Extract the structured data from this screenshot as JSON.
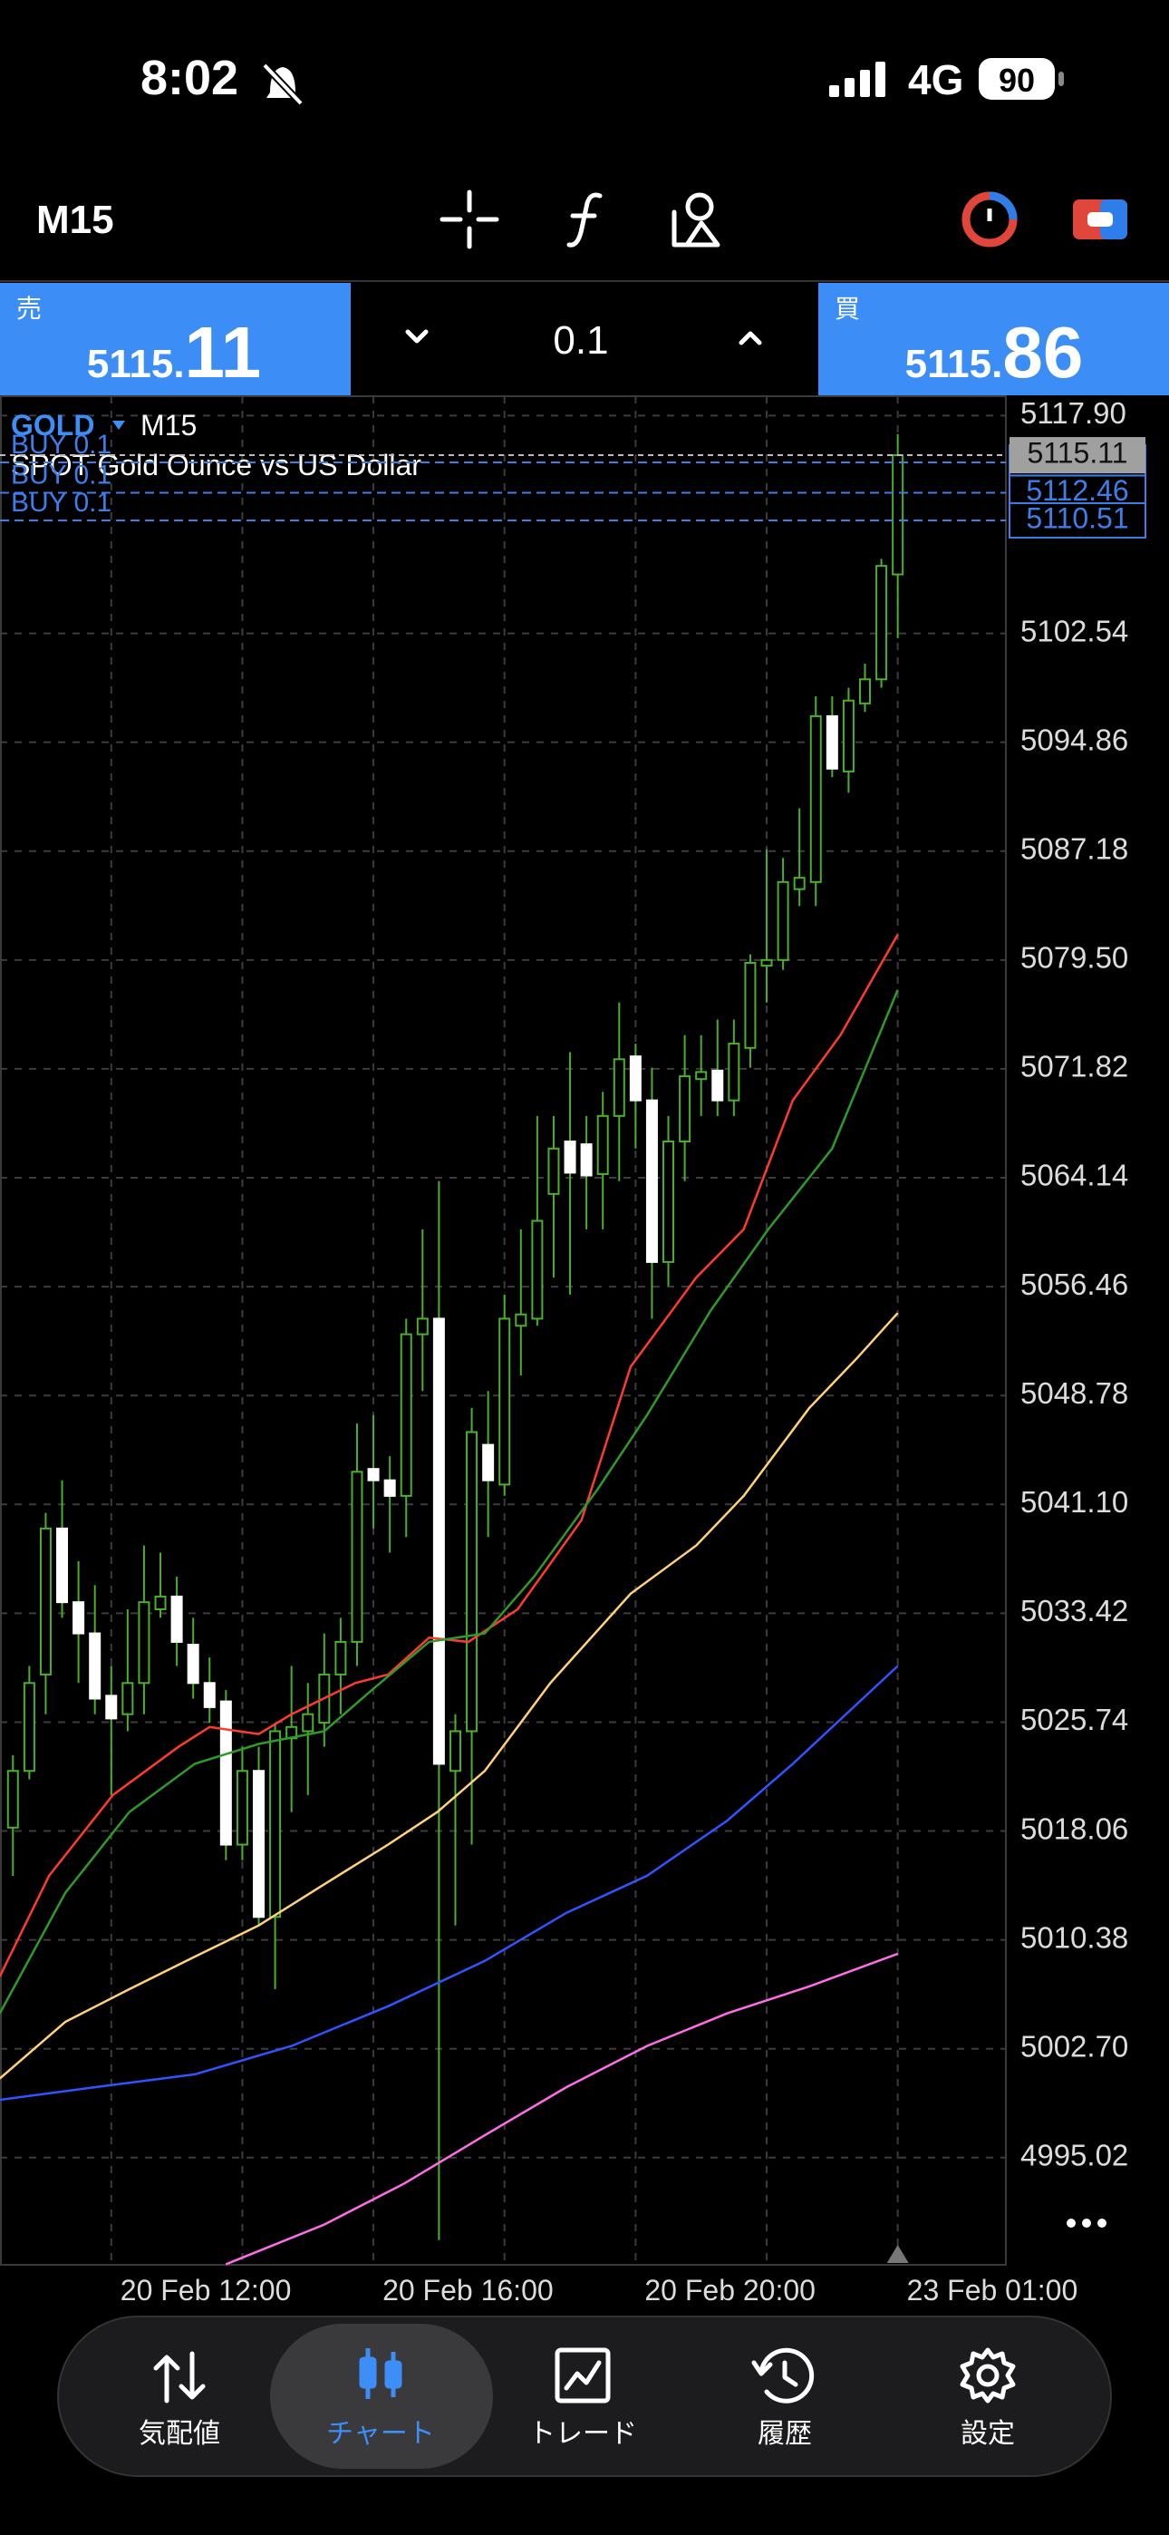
{
  "status_bar": {
    "time": "8:02",
    "network": "4G",
    "battery": "90"
  },
  "toolbar": {
    "timeframe": "M15"
  },
  "trade_panel": {
    "sell": {
      "label": "売",
      "main": "5115.",
      "big": "11"
    },
    "lot": "0.1",
    "buy": {
      "label": "買",
      "main": "5115.",
      "big": "86"
    }
  },
  "chart_data": {
    "type": "candlestick",
    "symbol": "GOLD",
    "timeframe": "M15",
    "description": "SPOT Gold Ounce vs US Dollar",
    "ylim": [
      4987.46,
      5119.27
    ],
    "yticks": [
      {
        "value": 5117.9,
        "label": "5117.90"
      },
      5102.54,
      5094.86,
      5087.18,
      {
        "value": 5079.5,
        "label": "5079.50"
      },
      5071.82,
      5064.14,
      5056.46,
      5048.78,
      {
        "value": 5041.1,
        "label": "5041.10"
      },
      5033.42,
      5025.74,
      5018.06,
      5010.38,
      {
        "value": 5002.7,
        "label": "5002.70"
      },
      4995.02
    ],
    "xlim": [
      -0.79,
      60.6
    ],
    "xticks": [
      {
        "value": 6,
        "label": "20 Feb 12:00"
      },
      {
        "value": 14,
        "label": null
      },
      {
        "value": 22,
        "label": "20 Feb 16:00"
      },
      {
        "value": 30,
        "label": null
      },
      {
        "value": 38,
        "label": "20 Feb 20:00"
      },
      {
        "value": 46,
        "label": null
      },
      {
        "value": 54,
        "label": "23 Feb 01:00"
      }
    ],
    "grid": true,
    "colors": {
      "up": "#4caf2b",
      "down": "#ffffff"
    },
    "candles": {
      "open": [
        5018.3,
        5022.3,
        5029.1,
        5039.4,
        5034.2,
        5032.0,
        5027.6,
        5026.3,
        5028.5,
        5033.7,
        5034.6,
        5031.2,
        5028.5,
        5027.2,
        5017.1,
        5022.3,
        5012.0,
        5024.6,
        5025.1,
        5025.7,
        5029.1,
        5031.4,
        5043.6,
        5042.8,
        5041.7,
        5053.1,
        5054.2,
        5022.3,
        5025.1,
        5045.3,
        5042.5,
        5053.7,
        5054.2,
        5063.0,
        5066.7,
        5066.5,
        5064.4,
        5068.5,
        5072.7,
        5069.6,
        5058.2,
        5066.7,
        5071.1,
        5071.7,
        5069.6,
        5073.3,
        5079.1,
        5079.5,
        5084.5,
        5085.0,
        5096.7,
        5092.8,
        5097.6,
        5099.3,
        5106.7
      ],
      "high": [
        5023.4,
        5029.7,
        5040.5,
        5042.8,
        5037.1,
        5035.4,
        5029.7,
        5033.7,
        5038.2,
        5037.7,
        5036.0,
        5033.1,
        5030.3,
        5028.0,
        5024.0,
        5024.0,
        5025.7,
        5029.7,
        5028.5,
        5032.0,
        5033.1,
        5046.8,
        5047.4,
        5044.5,
        5054.2,
        5060.5,
        5063.9,
        5026.3,
        5047.9,
        5049.1,
        5055.9,
        5060.5,
        5068.5,
        5068.5,
        5073.0,
        5068.5,
        5070.2,
        5076.5,
        5073.6,
        5071.9,
        5068.5,
        5074.2,
        5074.2,
        5075.3,
        5075.3,
        5079.9,
        5087.3,
        5086.7,
        5090.2,
        5098.1,
        5098.1,
        5098.7,
        5100.4,
        5107.8,
        5116.6
      ],
      "low": [
        5014.9,
        5021.7,
        5026.3,
        5033.1,
        5028.5,
        5026.3,
        5020.6,
        5025.1,
        5026.3,
        5033.1,
        5029.7,
        5027.4,
        5025.7,
        5016.0,
        5016.0,
        5011.4,
        5006.9,
        5019.4,
        5020.6,
        5024.0,
        5026.3,
        5029.7,
        5039.4,
        5037.7,
        5038.8,
        5049.1,
        4989.2,
        5011.4,
        5017.1,
        5038.8,
        5041.7,
        5050.2,
        5053.7,
        5057.1,
        5055.9,
        5060.5,
        5060.5,
        5063.9,
        5066.2,
        5054.2,
        5056.5,
        5063.9,
        5068.5,
        5068.5,
        5068.5,
        5071.9,
        5076.5,
        5078.8,
        5083.3,
        5083.3,
        5092.4,
        5091.3,
        5097.0,
        5098.7,
        5102.2
      ],
      "close": [
        5022.3,
        5028.5,
        5039.4,
        5034.2,
        5032.0,
        5027.4,
        5026.0,
        5028.5,
        5034.2,
        5034.6,
        5031.4,
        5028.5,
        5026.8,
        5017.1,
        5022.3,
        5012.0,
        5025.1,
        5025.4,
        5026.3,
        5029.1,
        5031.4,
        5043.4,
        5042.8,
        5041.7,
        5053.1,
        5054.2,
        5022.8,
        5025.1,
        5046.2,
        5042.8,
        5054.2,
        5054.5,
        5061.1,
        5066.2,
        5064.5,
        5064.3,
        5068.5,
        5072.5,
        5069.6,
        5058.2,
        5066.7,
        5071.3,
        5071.6,
        5069.6,
        5073.6,
        5079.3,
        5079.5,
        5085.0,
        5085.3,
        5096.7,
        5093.0,
        5097.8,
        5099.3,
        5107.3,
        5115.11
      ]
    },
    "lines": [
      {
        "color": "#ff3b30",
        "x": [
          -0.8,
          2.2,
          6.1,
          10.1,
          12.0,
          15.0,
          17.0,
          20.9,
          22.9,
          25.4,
          27.8,
          30.8,
          34.7,
          37.7,
          41.7,
          44.6,
          47.6,
          50.5,
          54.0
        ],
        "values": [
          5007.8,
          5014.9,
          5020.6,
          5024.0,
          5025.4,
          5024.9,
          5026.3,
          5028.5,
          5029.1,
          5031.7,
          5031.4,
          5033.7,
          5040.0,
          5050.8,
          5057.1,
          5060.5,
          5069.6,
          5074.2,
          5081.3
        ]
      },
      {
        "color": "#2f9a2a",
        "x": [
          -0.8,
          3.2,
          7.1,
          11.1,
          15.0,
          19.0,
          21.9,
          25.4,
          28.8,
          31.8,
          35.7,
          38.7,
          42.6,
          46.1,
          50.0,
          54.0
        ],
        "values": [
          5005.2,
          5013.7,
          5019.4,
          5022.8,
          5024.2,
          5025.1,
          5028.0,
          5031.4,
          5032.0,
          5036.0,
          5042.2,
          5047.4,
          5054.8,
          5060.5,
          5066.2,
          5077.4
        ]
      },
      {
        "color": "#ffd27a",
        "x": [
          -0.8,
          3.2,
          7.1,
          11.1,
          15.0,
          19.0,
          22.9,
          25.9,
          28.8,
          32.8,
          37.7,
          41.7,
          44.6,
          48.6,
          51.5,
          54.0
        ],
        "values": [
          5000.6,
          5004.6,
          5006.9,
          5009.2,
          5011.4,
          5014.3,
          5017.1,
          5019.4,
          5022.3,
          5028.5,
          5034.8,
          5038.2,
          5041.7,
          5047.9,
          5051.4,
          5054.6
        ]
      },
      {
        "color": "#2f55ff",
        "x": [
          -0.8,
          5.1,
          11.1,
          17.0,
          22.9,
          28.8,
          33.8,
          38.7,
          43.6,
          47.6,
          54.0
        ],
        "values": [
          4999.1,
          5000.0,
          5000.9,
          5002.9,
          5005.7,
          5008.9,
          5012.3,
          5014.9,
          5018.8,
          5022.8,
          5029.7
        ]
      },
      {
        "color": "#ff6ee6",
        "x": [
          13.0,
          19.0,
          23.9,
          28.8,
          33.8,
          38.7,
          43.6,
          48.6,
          54.0
        ],
        "values": [
          4987.5,
          4990.3,
          4993.2,
          4996.6,
          5000.0,
          5002.9,
          5005.2,
          5007.1,
          5009.4
        ]
      }
    ],
    "positions": [
      {
        "label": "BUY 0.1",
        "value": 5114.6
      },
      {
        "label": "BUY 0.1",
        "value": 5112.46
      },
      {
        "label": "BUY 0.1",
        "value": 5110.51
      }
    ],
    "bid": 5115.11
  },
  "nav": {
    "items": [
      {
        "label": "気配値"
      },
      {
        "label": "チャート"
      },
      {
        "label": "トレード"
      },
      {
        "label": "履歴"
      },
      {
        "label": "設定"
      }
    ]
  }
}
